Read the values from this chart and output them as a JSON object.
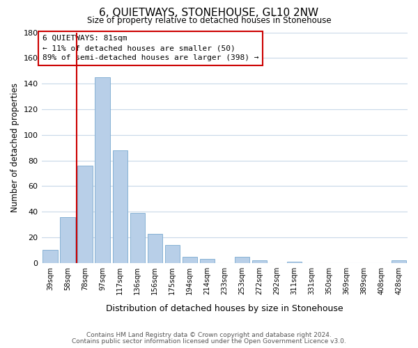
{
  "title": "6, QUIETWAYS, STONEHOUSE, GL10 2NW",
  "subtitle": "Size of property relative to detached houses in Stonehouse",
  "xlabel": "Distribution of detached houses by size in Stonehouse",
  "ylabel": "Number of detached properties",
  "categories": [
    "39sqm",
    "58sqm",
    "78sqm",
    "97sqm",
    "117sqm",
    "136sqm",
    "156sqm",
    "175sqm",
    "194sqm",
    "214sqm",
    "233sqm",
    "253sqm",
    "272sqm",
    "292sqm",
    "311sqm",
    "331sqm",
    "350sqm",
    "369sqm",
    "389sqm",
    "408sqm",
    "428sqm"
  ],
  "values": [
    10,
    36,
    76,
    145,
    88,
    39,
    23,
    14,
    5,
    3,
    0,
    5,
    2,
    0,
    1,
    0,
    0,
    0,
    0,
    0,
    2
  ],
  "bar_color": "#b8cfe8",
  "bar_edge_color": "#7aaad0",
  "vline_index": 2,
  "vline_color": "#cc0000",
  "annotation_line1": "6 QUIETWAYS: 81sqm",
  "annotation_line2": "← 11% of detached houses are smaller (50)",
  "annotation_line3": "89% of semi-detached houses are larger (398) →",
  "box_color": "#cc0000",
  "ylim": [
    0,
    180
  ],
  "yticks": [
    0,
    20,
    40,
    60,
    80,
    100,
    120,
    140,
    160,
    180
  ],
  "footnote1": "Contains HM Land Registry data © Crown copyright and database right 2024.",
  "footnote2": "Contains public sector information licensed under the Open Government Licence v3.0.",
  "background_color": "#ffffff",
  "grid_color": "#c8d8e8"
}
